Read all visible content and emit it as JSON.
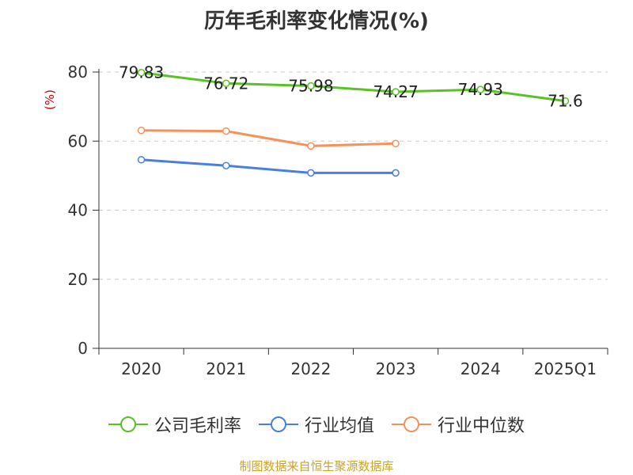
{
  "title": "历年毛利率变化情况(%)",
  "footer": "制图数据来自恒生聚源数据库",
  "chart_data": {
    "type": "line",
    "title": "历年毛利率变化情况(%)",
    "ylabel": "(%)",
    "xlabel": "",
    "categories": [
      "2020",
      "2021",
      "2022",
      "2023",
      "2024",
      "2025Q1"
    ],
    "ylim": [
      0,
      80
    ],
    "yticks": [
      0,
      20,
      40,
      60,
      80
    ],
    "grid": true,
    "legend_position": "bottom",
    "series": [
      {
        "name": "公司毛利率",
        "color": "#5bc226",
        "values": [
          79.83,
          76.72,
          75.98,
          74.27,
          74.93,
          71.6
        ],
        "labels": [
          "79.83",
          "76.72",
          "75.98",
          "74.27",
          "74.93",
          "71.6"
        ]
      },
      {
        "name": "行业均值",
        "color": "#4a7fe0",
        "values": [
          54.6,
          52.9,
          50.8,
          50.8,
          null,
          null
        ]
      },
      {
        "name": "行业中位数",
        "color": "#f5925b",
        "values": [
          63.1,
          62.9,
          58.6,
          59.3,
          null,
          null
        ]
      }
    ]
  }
}
